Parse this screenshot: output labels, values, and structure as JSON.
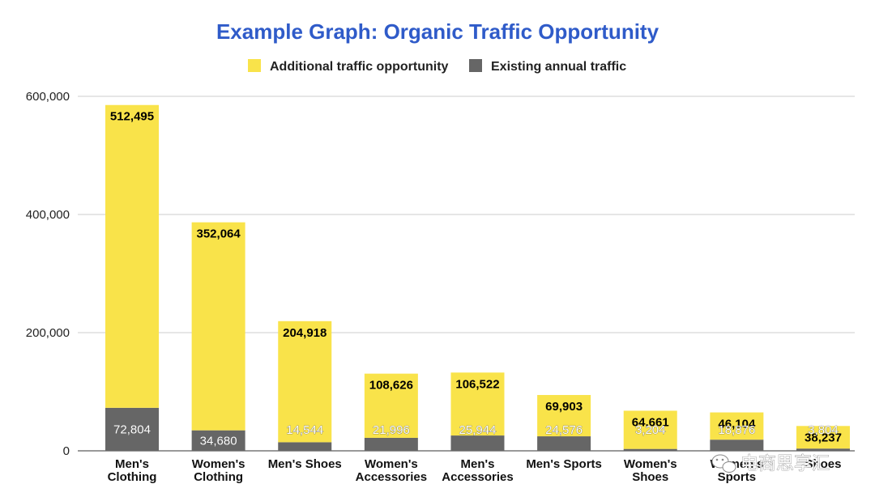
{
  "chart_data": {
    "type": "bar",
    "stacked": true,
    "title": "Example Graph: Organic Traffic Opportunity",
    "xlabel": "",
    "ylabel": "",
    "ylim": [
      0,
      600000
    ],
    "yticks": [
      0,
      200000,
      400000,
      600000
    ],
    "ytick_labels": [
      "0",
      "200,000",
      "400,000",
      "600,000"
    ],
    "grid": true,
    "legend_position": "top",
    "categories": [
      [
        "Men's",
        "Clothing"
      ],
      [
        "Women's",
        "Clothing"
      ],
      [
        "Men's Shoes"
      ],
      [
        "Women's",
        "Accessories"
      ],
      [
        "Men's",
        "Accessories"
      ],
      [
        "Men's Sports"
      ],
      [
        "Women's",
        "Shoes"
      ],
      [
        "Women's",
        "Sports"
      ],
      [
        "Shoes"
      ]
    ],
    "series": [
      {
        "name": "Existing annual traffic",
        "color": "#666666",
        "values": [
          72804,
          34680,
          14544,
          21996,
          25944,
          24576,
          3204,
          18876,
          3804
        ],
        "labels": [
          "72,804",
          "34,680",
          "14,544",
          "21,996",
          "25,944",
          "24,576",
          "3,204",
          "18,876",
          "3,804"
        ]
      },
      {
        "name": "Additional traffic opportunity",
        "color": "#F9E34A",
        "values": [
          512495,
          352064,
          204918,
          108626,
          106522,
          69903,
          64661,
          46104,
          38237
        ],
        "labels": [
          "512,495",
          "352,064",
          "204,918",
          "108,626",
          "106,522",
          "69,903",
          "64,661",
          "46,104",
          "38,237"
        ]
      }
    ],
    "title_color": "#2F5BC9"
  },
  "watermark": {
    "icon": "wechat-icon",
    "text": "电商思享汇"
  }
}
